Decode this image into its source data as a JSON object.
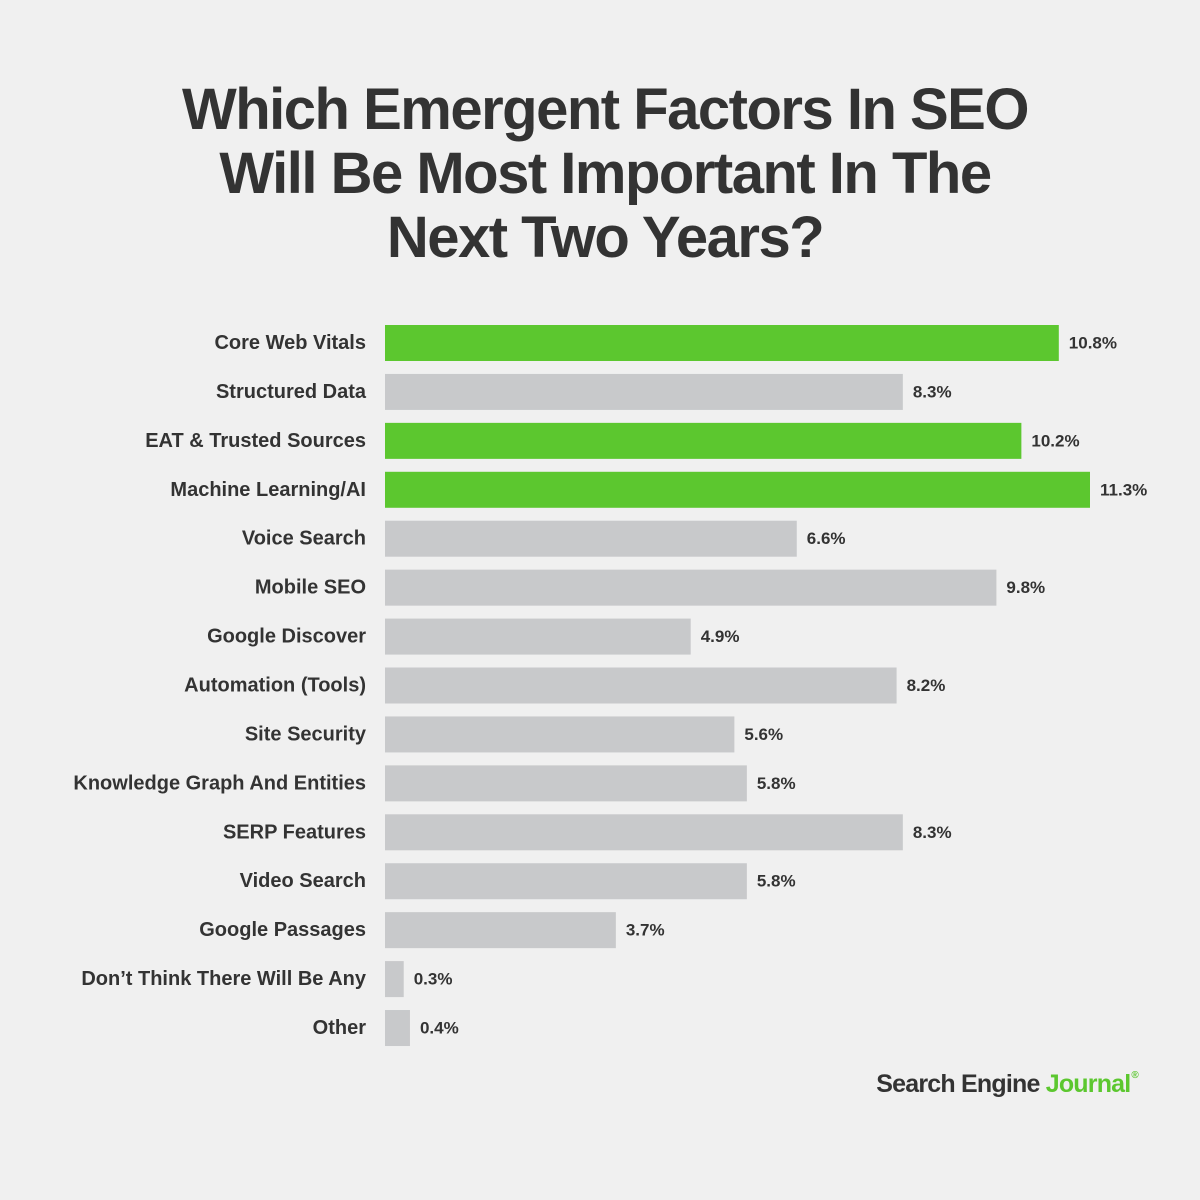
{
  "title_lines": [
    "Which Emergent Factors In SEO",
    "Will Be Most Important In The",
    "Next Two Years?"
  ],
  "brand": {
    "part1": "Search Engine ",
    "part2": "Journal",
    "mark": "®"
  },
  "colors": {
    "highlight": "#5cc72f",
    "default_bar": "#c8c9cb",
    "text": "#333333",
    "background": "#f0f0f0"
  },
  "chart_data": {
    "type": "bar",
    "orientation": "horizontal",
    "title": "Which Emergent Factors In SEO Will Be Most Important In The Next Two Years?",
    "xlabel": "",
    "ylabel": "",
    "xlim": [
      0,
      11.3
    ],
    "grid": false,
    "legend": "none",
    "categories": [
      "Core Web Vitals",
      "Structured Data",
      "EAT & Trusted Sources",
      "Machine Learning/AI",
      "Voice Search",
      "Mobile SEO",
      "Google Discover",
      "Automation (Tools)",
      "Site Security",
      "Knowledge Graph And Entities",
      "SERP Features",
      "Video Search",
      "Google Passages",
      "Don’t Think There Will Be Any",
      "Other"
    ],
    "values": [
      10.8,
      8.3,
      10.2,
      11.3,
      6.6,
      9.8,
      4.9,
      8.2,
      5.6,
      5.8,
      8.3,
      5.8,
      3.7,
      0.3,
      0.4
    ],
    "value_labels": [
      "10.8%",
      "8.3%",
      "10.2%",
      "11.3%",
      "6.6%",
      "9.8%",
      "4.9%",
      "8.2%",
      "5.6%",
      "5.8%",
      "8.3%",
      "5.8%",
      "3.7%",
      "0.3%",
      "0.4%"
    ],
    "highlighted": [
      true,
      false,
      true,
      true,
      false,
      false,
      false,
      false,
      false,
      false,
      false,
      false,
      false,
      false,
      false
    ]
  }
}
